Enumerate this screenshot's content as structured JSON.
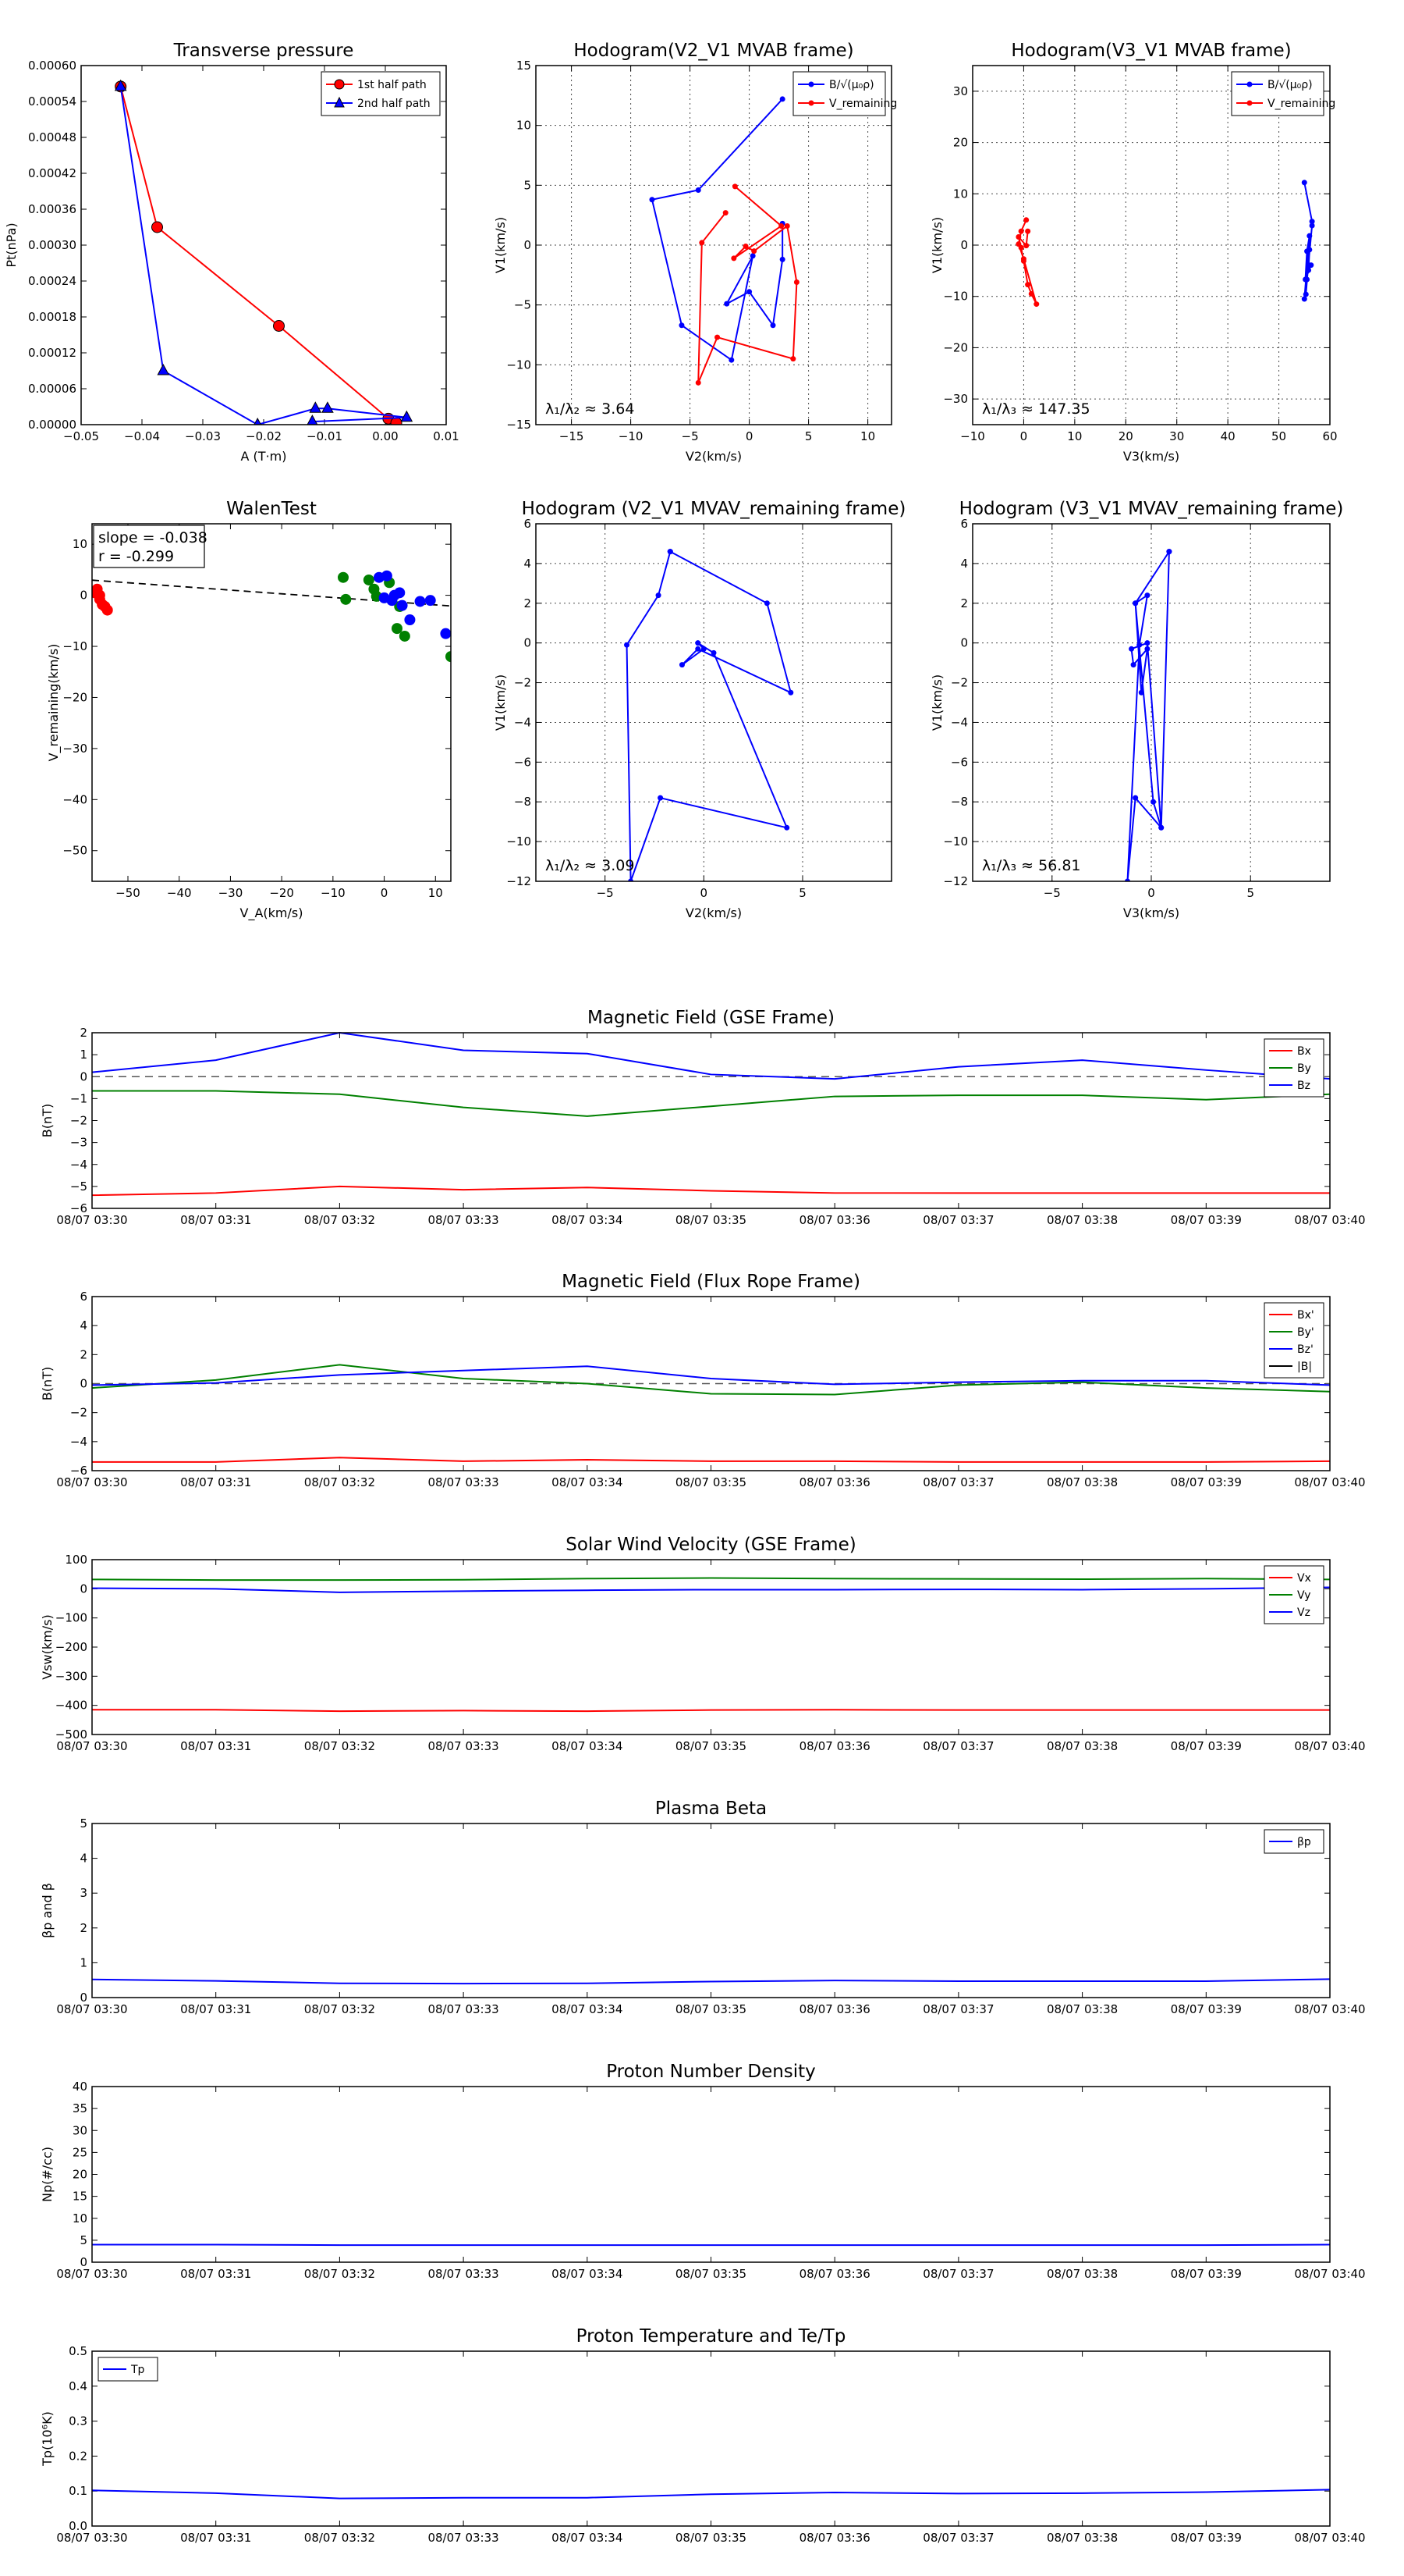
{
  "chart_data": [
    {
      "type": "line",
      "title": "Transverse pressure",
      "xlabel": "A (T·m)",
      "ylabel": "Pt(nPa)",
      "xlim": [
        -0.05,
        0.01
      ],
      "ylim": [
        0,
        0.0006
      ],
      "xticks": [
        -0.05,
        -0.04,
        -0.03,
        -0.02,
        -0.01,
        0,
        0.01
      ],
      "xtick_labels": [
        "−0.05",
        "−0.04",
        "−0.03",
        "−0.02",
        "−0.01",
        "0.00",
        "0.01"
      ],
      "yticks": [
        0,
        6e-05,
        0.00012,
        0.00018,
        0.00024,
        0.0003,
        0.00036,
        0.00042,
        0.00048,
        0.00054,
        0.0006
      ],
      "ytick_labels": [
        "0.00000",
        "0.00006",
        "0.00012",
        "0.00018",
        "0.00024",
        "0.00030",
        "0.00036",
        "0.00042",
        "0.00048",
        "0.00054",
        "0.00060"
      ],
      "grid": false,
      "legend": "top-right",
      "series": [
        {
          "name": "1st half path",
          "color": "#ff0000",
          "marker": "circle",
          "x": [
            -0.0435,
            -0.0375,
            -0.0175,
            0.0005,
            0.0018
          ],
          "y": [
            0.000565,
            0.00033,
            0.000165,
            1e-05,
            3e-06
          ]
        },
        {
          "name": "2nd half path",
          "color": "#0000ff",
          "marker": "triangle",
          "x": [
            -0.0435,
            -0.0365,
            -0.021,
            -0.0115,
            -0.0095,
            0.0035,
            -0.012
          ],
          "y": [
            0.000565,
            9e-05,
            0.0,
            2.7e-05,
            2.7e-05,
            1.2e-05,
            5e-06
          ]
        }
      ]
    },
    {
      "type": "line",
      "title": "Hodogram(V2_V1 MVAB frame)",
      "xlabel": "V2(km/s)",
      "ylabel": "V1(km/s)",
      "xlim": [
        -18,
        12
      ],
      "ylim": [
        -15,
        15
      ],
      "xticks": [
        -15,
        -10,
        -5,
        0,
        5,
        10
      ],
      "xtick_labels": [
        "−15",
        "−10",
        "−5",
        "0",
        "5",
        "10"
      ],
      "yticks": [
        -15,
        -10,
        -5,
        0,
        5,
        10,
        15
      ],
      "ytick_labels": [
        "−15",
        "−10",
        "−5",
        "0",
        "5",
        "10",
        "15"
      ],
      "grid": true,
      "legend": "top-right",
      "annotation": "λ₁/λ₂ ≈ 3.64",
      "series": [
        {
          "name": "B/√(μ₀ρ)",
          "color": "#0000ff",
          "x": [
            2.8,
            -4.3,
            -8.2,
            -5.7,
            -1.5,
            0.3,
            -1.9,
            0.0,
            2.0,
            2.8,
            2.8
          ],
          "y": [
            12.2,
            4.6,
            3.8,
            -6.7,
            -9.6,
            -0.9,
            -4.9,
            -3.9,
            -6.7,
            -1.2,
            1.8
          ]
        },
        {
          "name": "V_remaining",
          "color": "#ff0000",
          "x": [
            -2.0,
            -4.0,
            -4.3,
            -2.7,
            3.7,
            4.0,
            3.2,
            0.4,
            -0.3,
            -1.3,
            2.7,
            -1.2
          ],
          "y": [
            2.7,
            0.2,
            -11.5,
            -7.7,
            -9.5,
            -3.1,
            1.6,
            -0.5,
            -0.1,
            -1.1,
            1.6,
            4.9
          ]
        }
      ]
    },
    {
      "type": "line",
      "title": "Hodogram(V3_V1 MVAB frame)",
      "xlabel": "V3(km/s)",
      "ylabel": "V1(km/s)",
      "xlim": [
        -10,
        60
      ],
      "ylim": [
        -35,
        35
      ],
      "xticks": [
        -10,
        0,
        10,
        20,
        30,
        40,
        50,
        60
      ],
      "xtick_labels": [
        "−10",
        "0",
        "10",
        "20",
        "30",
        "40",
        "50",
        "60"
      ],
      "yticks": [
        -30,
        -20,
        -10,
        0,
        10,
        20,
        30
      ],
      "ytick_labels": [
        "−30",
        "−20",
        "−10",
        "0",
        "10",
        "20",
        "30"
      ],
      "grid": true,
      "legend": "top-right",
      "annotation": "λ₁/λ₃ ≈ 147.35",
      "series": [
        {
          "name": "B/√(μ₀ρ)",
          "color": "#0000ff",
          "x": [
            55.0,
            56.5,
            56.5,
            55.5,
            55.3,
            56.0,
            55.8,
            56.3,
            55.2,
            55.5,
            56.0,
            55.0
          ],
          "y": [
            12.2,
            4.6,
            3.8,
            -6.7,
            -9.6,
            -0.9,
            -4.9,
            -3.9,
            -6.7,
            -1.2,
            1.8,
            -10.5
          ]
        },
        {
          "name": "V_remaining",
          "color": "#ff0000",
          "x": [
            0.5,
            -0.5,
            -1.0,
            0.0,
            2.5,
            1.5,
            0.8,
            0.0,
            -0.5,
            -1.0,
            0.5,
            0.8
          ],
          "y": [
            4.9,
            2.7,
            0.2,
            -2.7,
            -11.5,
            -9.5,
            -7.7,
            -3.1,
            -0.5,
            1.6,
            -0.1,
            2.7
          ]
        }
      ]
    },
    {
      "type": "scatter",
      "title": "WalenTest",
      "xlabel": "V_A(km/s)",
      "ylabel": "V_remaining(km/s)",
      "xlim": [
        -57,
        13
      ],
      "ylim": [
        -56,
        14
      ],
      "xticks": [
        -50,
        -40,
        -30,
        -20,
        -10,
        0,
        10
      ],
      "xtick_labels": [
        "−50",
        "−40",
        "−30",
        "−20",
        "−10",
        "0",
        "10"
      ],
      "yticks": [
        -50,
        -40,
        -30,
        -20,
        -10,
        0,
        10
      ],
      "ytick_labels": [
        "−50",
        "−40",
        "−30",
        "−20",
        "−10",
        "0",
        "10"
      ],
      "grid": false,
      "slope_text": "slope = -0.038",
      "r_text": "r = -0.299",
      "fit_line": {
        "slope": -0.038,
        "intercept": -1.6
      },
      "series": [
        {
          "color": "#ff0000",
          "x": [
            -56.5,
            -56,
            -55.5,
            -55.5,
            -55,
            -54.5,
            -54
          ],
          "y": [
            0.5,
            1.2,
            -0.8,
            0,
            -1.8,
            -2.2,
            -2.9
          ]
        },
        {
          "color": "#008000",
          "x": [
            -8,
            -7.5,
            -3,
            -2,
            -1.5,
            1,
            2.5,
            3,
            4,
            13
          ],
          "y": [
            3.5,
            -0.8,
            3,
            1.2,
            -0.2,
            2.5,
            -6.5,
            -2.2,
            -8,
            -12
          ]
        },
        {
          "color": "#0000ff",
          "x": [
            -1,
            0,
            0.5,
            1.5,
            2,
            3,
            3.5,
            5,
            7,
            9,
            12
          ],
          "y": [
            3.5,
            -0.5,
            3.8,
            -1,
            0,
            0.5,
            -2,
            -4.8,
            -1.2,
            -1,
            -7.5
          ]
        }
      ]
    },
    {
      "type": "line",
      "title": "Hodogram (V2_V1 MVAV_remaining frame)",
      "xlabel": "V2(km/s)",
      "ylabel": "V1(km/s)",
      "xlim": [
        -8.5,
        9.5
      ],
      "ylim": [
        -12,
        6
      ],
      "xticks": [
        -5,
        0,
        5
      ],
      "xtick_labels": [
        "−5",
        "0",
        "5"
      ],
      "yticks": [
        -12,
        -10,
        -8,
        -6,
        -4,
        -2,
        0,
        2,
        4,
        6
      ],
      "ytick_labels": [
        "−12",
        "−10",
        "−8",
        "−6",
        "−4",
        "−2",
        "0",
        "2",
        "4",
        "6"
      ],
      "grid": true,
      "annotation": "λ₁/λ₂ ≈ 3.09",
      "series": [
        {
          "color": "#0000ff",
          "x": [
            -1.7,
            3.2,
            4.4,
            -0.3,
            -1.1,
            0.0,
            -0.3,
            0.5,
            4.2,
            -2.2,
            -3.7,
            -3.9,
            -2.3,
            -1.7
          ],
          "y": [
            4.6,
            2.0,
            -2.5,
            -0.3,
            -1.1,
            -0.3,
            0.0,
            -0.5,
            -9.3,
            -7.8,
            -12.0,
            -0.1,
            2.4,
            4.6
          ]
        }
      ]
    },
    {
      "type": "line",
      "title": "Hodogram (V3_V1 MVAV_remaining frame)",
      "xlabel": "V3(km/s)",
      "ylabel": "V1(km/s)",
      "xlim": [
        -9,
        9
      ],
      "ylim": [
        -12,
        6
      ],
      "xticks": [
        -5,
        0,
        5
      ],
      "xtick_labels": [
        "−5",
        "0",
        "5"
      ],
      "yticks": [
        -12,
        -10,
        -8,
        -6,
        -4,
        -2,
        0,
        2,
        4,
        6
      ],
      "ytick_labels": [
        "−12",
        "−10",
        "−8",
        "−6",
        "−4",
        "−2",
        "0",
        "2",
        "4",
        "6"
      ],
      "grid": true,
      "annotation": "λ₁/λ₃ ≈ 56.81",
      "series": [
        {
          "color": "#0000ff",
          "x": [
            0.9,
            -0.8,
            -0.5,
            -0.2,
            -0.9,
            -1.0,
            -0.2,
            0.5,
            -0.8,
            -1.2,
            -0.6,
            -0.2,
            -0.8,
            0.1,
            0.5,
            0.9
          ],
          "y": [
            4.6,
            2.0,
            -2.5,
            -0.3,
            -1.1,
            -0.3,
            0.0,
            -9.3,
            -7.8,
            -12.0,
            -0.1,
            2.4,
            2.0,
            -8.0,
            -9.3,
            4.6
          ]
        }
      ]
    },
    {
      "type": "line",
      "title": "Magnetic Field (GSE Frame)",
      "xlabel": "",
      "ylabel": "B(nT)",
      "ylim": [
        -6,
        2
      ],
      "yticks": [
        -6,
        -5,
        -4,
        -3,
        -2,
        -1,
        0,
        1,
        2
      ],
      "ytick_labels": [
        "−6",
        "−5",
        "−4",
        "−3",
        "−2",
        "−1",
        "0",
        "1",
        "2"
      ],
      "zero_line": true,
      "legend": "top-right",
      "series": [
        {
          "name": "Bx",
          "color": "#ff0000",
          "values": [
            -5.4,
            -5.3,
            -5.0,
            -5.15,
            -5.05,
            -5.2,
            -5.3,
            -5.3,
            -5.3,
            -5.3,
            -5.3
          ]
        },
        {
          "name": "By",
          "color": "#008000",
          "values": [
            -0.65,
            -0.65,
            -0.8,
            -1.4,
            -1.8,
            -1.35,
            -0.9,
            -0.85,
            -0.85,
            -1.05,
            -0.8
          ]
        },
        {
          "name": "Bz",
          "color": "#0000ff",
          "values": [
            0.2,
            0.75,
            2.0,
            1.2,
            1.05,
            0.1,
            -0.1,
            0.45,
            0.75,
            0.3,
            -0.1
          ]
        }
      ]
    },
    {
      "type": "line",
      "title": "Magnetic Field (Flux Rope Frame)",
      "xlabel": "",
      "ylabel": "B(nT)",
      "ylim": [
        -6,
        6
      ],
      "yticks": [
        -6,
        -4,
        -2,
        0,
        2,
        4,
        6
      ],
      "ytick_labels": [
        "−6",
        "−4",
        "−2",
        "0",
        "2",
        "4",
        "6"
      ],
      "zero_line": true,
      "legend": "top-right",
      "series": [
        {
          "name": "Bx'",
          "color": "#ff0000",
          "values": [
            -5.4,
            -5.4,
            -5.1,
            -5.35,
            -5.25,
            -5.35,
            -5.35,
            -5.4,
            -5.4,
            -5.4,
            -5.35
          ]
        },
        {
          "name": "By'",
          "color": "#008000",
          "values": [
            -0.3,
            0.25,
            1.3,
            0.35,
            0.0,
            -0.7,
            -0.75,
            -0.1,
            0.1,
            -0.3,
            -0.55
          ]
        },
        {
          "name": "Bz'",
          "color": "#0000ff",
          "values": [
            -0.1,
            0.05,
            0.6,
            0.9,
            1.2,
            0.35,
            -0.05,
            0.1,
            0.2,
            0.2,
            -0.1
          ]
        },
        {
          "name": "|B|",
          "color": "#000000",
          "dashed": true,
          "values": []
        }
      ]
    },
    {
      "type": "line",
      "title": "Solar Wind Velocity (GSE Frame)",
      "xlabel": "",
      "ylabel": "Vsw(km/s)",
      "ylim": [
        -500,
        100
      ],
      "yticks": [
        -500,
        -400,
        -300,
        -200,
        -100,
        0,
        100
      ],
      "ytick_labels": [
        "−500",
        "−400",
        "−300",
        "−200",
        "−100",
        "0",
        "100"
      ],
      "legend": "top-right",
      "series": [
        {
          "name": "Vx",
          "color": "#ff0000",
          "values": [
            -415,
            -415,
            -420,
            -418,
            -420,
            -416,
            -415,
            -416,
            -416,
            -416,
            -416
          ]
        },
        {
          "name": "Vy",
          "color": "#008000",
          "values": [
            32,
            30,
            30,
            31,
            35,
            37,
            35,
            34,
            33,
            35,
            32
          ]
        },
        {
          "name": "Vz",
          "color": "#0000ff",
          "values": [
            2,
            0,
            -12,
            -8,
            -5,
            -3,
            -3,
            -2,
            -3,
            0,
            5
          ]
        }
      ]
    },
    {
      "type": "line",
      "title": "Plasma Beta",
      "xlabel": "",
      "ylabel": "βp and β",
      "ylim": [
        0,
        5
      ],
      "yticks": [
        0,
        1,
        2,
        3,
        4,
        5
      ],
      "ytick_labels": [
        "0",
        "1",
        "2",
        "3",
        "4",
        "5"
      ],
      "legend": "top-right",
      "series": [
        {
          "name": "βp",
          "color": "#0000ff",
          "values": [
            0.52,
            0.48,
            0.41,
            0.4,
            0.41,
            0.46,
            0.49,
            0.47,
            0.47,
            0.47,
            0.53
          ]
        }
      ]
    },
    {
      "type": "line",
      "title": "Proton Number Density",
      "xlabel": "",
      "ylabel": "Np(#/cc)",
      "ylim": [
        0,
        40
      ],
      "yticks": [
        0,
        5,
        10,
        15,
        20,
        25,
        30,
        35,
        40
      ],
      "ytick_labels": [
        "0",
        "5",
        "10",
        "15",
        "20",
        "25",
        "30",
        "35",
        "40"
      ],
      "series": [
        {
          "color": "#0000ff",
          "values": [
            4.0,
            4.0,
            3.9,
            3.9,
            3.9,
            3.9,
            3.9,
            3.9,
            3.9,
            3.9,
            4.0
          ]
        }
      ]
    },
    {
      "type": "line",
      "title": "Proton Temperature and Te/Tp",
      "xlabel": "",
      "ylabel": "Tp(10⁶K)",
      "ylim": [
        0,
        0.5
      ],
      "yticks": [
        0,
        0.1,
        0.2,
        0.3,
        0.4,
        0.5
      ],
      "ytick_labels": [
        "0.0",
        "0.1",
        "0.2",
        "0.3",
        "0.4",
        "0.5"
      ],
      "legend": "top-left",
      "series": [
        {
          "name": "Tp",
          "color": "#0000ff",
          "values": [
            0.102,
            0.094,
            0.079,
            0.081,
            0.081,
            0.091,
            0.096,
            0.093,
            0.094,
            0.097,
            0.104
          ]
        }
      ]
    }
  ],
  "time_axis": [
    "08/07 03:30",
    "08/07 03:31",
    "08/07 03:32",
    "08/07 03:33",
    "08/07 03:34",
    "08/07 03:35",
    "08/07 03:36",
    "08/07 03:37",
    "08/07 03:38",
    "08/07 03:39",
    "08/07 03:40"
  ]
}
